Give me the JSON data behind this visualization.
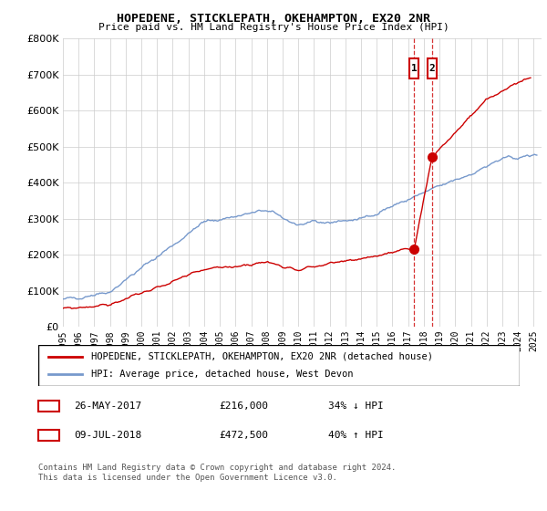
{
  "title": "HOPEDENE, STICKLEPATH, OKEHAMPTON, EX20 2NR",
  "subtitle": "Price paid vs. HM Land Registry's House Price Index (HPI)",
  "ylim": [
    0,
    800000
  ],
  "xlim_start": 1995.0,
  "xlim_end": 2025.5,
  "hpi_color": "#7799cc",
  "property_color": "#cc0000",
  "legend_label_property": "HOPEDENE, STICKLEPATH, OKEHAMPTON, EX20 2NR (detached house)",
  "legend_label_hpi": "HPI: Average price, detached house, West Devon",
  "transaction1_date": "26-MAY-2017",
  "transaction1_label": "£216,000",
  "transaction1_pct": "34% ↓ HPI",
  "transaction1_year": 2017.38,
  "transaction1_price": 216000,
  "transaction2_date": "09-JUL-2018",
  "transaction2_label": "£472,500",
  "transaction2_pct": "40% ↑ HPI",
  "transaction2_year": 2018.52,
  "transaction2_price": 472500,
  "copyright_text": "Contains HM Land Registry data © Crown copyright and database right 2024.\nThis data is licensed under the Open Government Licence v3.0.",
  "background_color": "#ffffff",
  "grid_color": "#cccccc"
}
